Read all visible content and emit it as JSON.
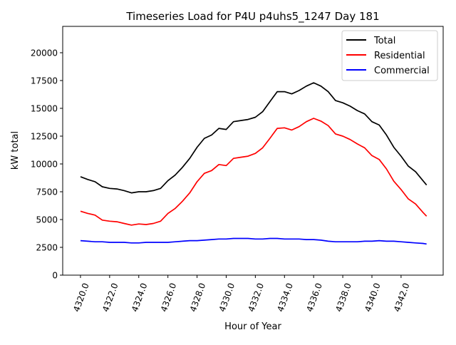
{
  "chart_data": {
    "type": "line",
    "title": "Timeseries Load for P4U p4uhs5_1247  Day 181",
    "xlabel": "Hour of Year",
    "ylabel": "kW total",
    "xlim": [
      4318.78,
      4344.89
    ],
    "ylim": [
      0,
      22370
    ],
    "xticks": [
      4320,
      4322,
      4324,
      4326,
      4328,
      4330,
      4332,
      4334,
      4336,
      4338,
      4340,
      4342
    ],
    "xtick_labels": [
      "4320.0",
      "4322.0",
      "4324.0",
      "4326.0",
      "4328.0",
      "4330.0",
      "4332.0",
      "4334.0",
      "4336.0",
      "4338.0",
      "4340.0",
      "4342.0"
    ],
    "yticks": [
      0,
      2500,
      5000,
      7500,
      10000,
      12500,
      15000,
      17500,
      20000
    ],
    "ytick_labels": [
      "0",
      "2500",
      "5000",
      "7500",
      "10000",
      "12500",
      "15000",
      "17500",
      "20000"
    ],
    "grid": false,
    "legend_placement": "top-right",
    "x": [
      4320,
      4320.5,
      4321,
      4321.5,
      4322,
      4322.5,
      4323,
      4323.5,
      4324,
      4324.5,
      4325,
      4325.5,
      4326,
      4326.5,
      4327,
      4327.5,
      4328,
      4328.5,
      4329,
      4329.5,
      4330,
      4330.5,
      4331,
      4331.5,
      4332,
      4332.5,
      4333,
      4333.5,
      4334,
      4334.5,
      4335,
      4335.5,
      4336,
      4336.5,
      4337,
      4337.5,
      4338,
      4338.5,
      4339,
      4339.5,
      4340,
      4340.5,
      4341,
      4341.5,
      4342,
      4342.5,
      4343,
      4343.5,
      4343.75
    ],
    "series": [
      {
        "name": "Total",
        "color": "#000000",
        "values": [
          8850,
          8600,
          8400,
          7950,
          7800,
          7750,
          7600,
          7400,
          7500,
          7500,
          7600,
          7800,
          8500,
          9000,
          9700,
          10500,
          11500,
          12300,
          12600,
          13200,
          13100,
          13800,
          13900,
          14000,
          14200,
          14700,
          15600,
          16500,
          16500,
          16300,
          16600,
          17000,
          17300,
          17000,
          16500,
          15700,
          15500,
          15200,
          14800,
          14500,
          13800,
          13500,
          12600,
          11500,
          10700,
          9800,
          9300,
          8500,
          8100
        ]
      },
      {
        "name": "Residential",
        "color": "#ff0000",
        "values": [
          5750,
          5550,
          5400,
          4950,
          4850,
          4800,
          4650,
          4500,
          4600,
          4550,
          4650,
          4850,
          5550,
          6000,
          6650,
          7400,
          8400,
          9150,
          9400,
          9950,
          9850,
          10500,
          10600,
          10700,
          10950,
          11450,
          12300,
          13200,
          13250,
          13050,
          13350,
          13800,
          14100,
          13850,
          13450,
          12700,
          12500,
          12200,
          11800,
          11450,
          10750,
          10400,
          9550,
          8450,
          7700,
          6850,
          6400,
          5650,
          5300
        ]
      },
      {
        "name": "Commercial",
        "color": "#0000ff",
        "values": [
          3100,
          3050,
          3000,
          3000,
          2950,
          2950,
          2950,
          2900,
          2900,
          2950,
          2950,
          2950,
          2950,
          3000,
          3050,
          3100,
          3100,
          3150,
          3200,
          3250,
          3250,
          3300,
          3300,
          3300,
          3250,
          3250,
          3300,
          3300,
          3250,
          3250,
          3250,
          3200,
          3200,
          3150,
          3050,
          3000,
          3000,
          3000,
          3000,
          3050,
          3050,
          3100,
          3050,
          3050,
          3000,
          2950,
          2900,
          2850,
          2800
        ]
      }
    ]
  }
}
